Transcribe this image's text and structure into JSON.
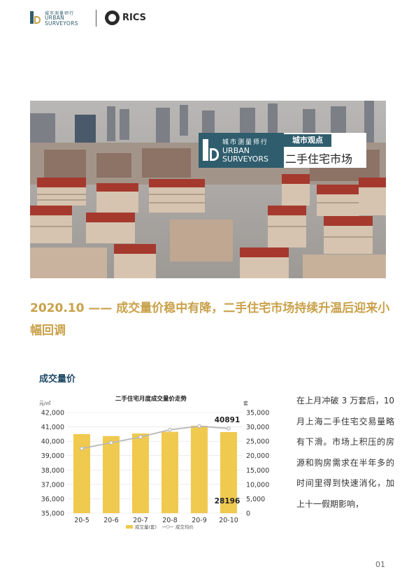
{
  "header": {
    "us_logo_cn": "城市测量师行",
    "us_logo_en_1": "URBAN",
    "us_logo_en_2": "SURVEYORS",
    "rics": "RICS"
  },
  "banner": {
    "logo_cn": "城市测量师行",
    "logo_en_1": "URBAN",
    "logo_en_2": "SURVEYORS",
    "tag": "城市观点",
    "subtitle": "二手住宅市场"
  },
  "headline": "2020.10  ——  成交量价稳中有降，二手住宅市场持续升温后迎来小幅回调",
  "section_title": "成交量价",
  "chart_data": {
    "type": "bar",
    "title": "二手住宅月度成交量价走势",
    "categories": [
      "20-5",
      "20-6",
      "20-7",
      "20-8",
      "20-9",
      "20-10"
    ],
    "series": [
      {
        "name": "成交量(套)",
        "type": "bar",
        "axis": "right",
        "values": [
          27500,
          26800,
          27700,
          28300,
          30400,
          28196
        ],
        "color": "#f0c94f"
      },
      {
        "name": "成交均价",
        "type": "line",
        "axis": "left",
        "values": [
          39500,
          39900,
          40300,
          40800,
          41050,
          40891
        ],
        "color": "#b8b8b8"
      }
    ],
    "left_unit": "元/㎡",
    "right_unit": "套",
    "left_ticks": [
      "42,000",
      "41,000",
      "40,000",
      "39,000",
      "38,000",
      "37,000",
      "36,000",
      "35,000"
    ],
    "right_ticks": [
      "35,000",
      "30,000",
      "25,000",
      "20,000",
      "15,000",
      "10,000",
      "5,000",
      "0"
    ],
    "ylim_left": [
      35000,
      42000
    ],
    "ylim_right": [
      0,
      35000
    ],
    "labels": {
      "price_last": "40891",
      "volume_last": "28196"
    },
    "legend": "bottom"
  },
  "body_text": "在上月冲破 3 万套后，10 月上海二手住宅交易量略有下滑。市场上积压的房源和购房需求在半年多的时间里得到快速消化，加上十一假期影响，",
  "page_number": "01"
}
